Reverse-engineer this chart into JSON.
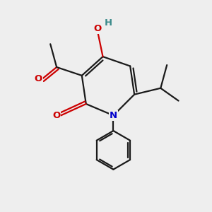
{
  "background_color": "#eeeeee",
  "bond_color": "#1a1a1a",
  "atom_colors": {
    "O": "#cc0000",
    "N": "#0000cc",
    "H_teal": "#3a8a8a",
    "C": "#1a1a1a"
  },
  "figsize": [
    3.0,
    3.0
  ],
  "dpi": 100
}
